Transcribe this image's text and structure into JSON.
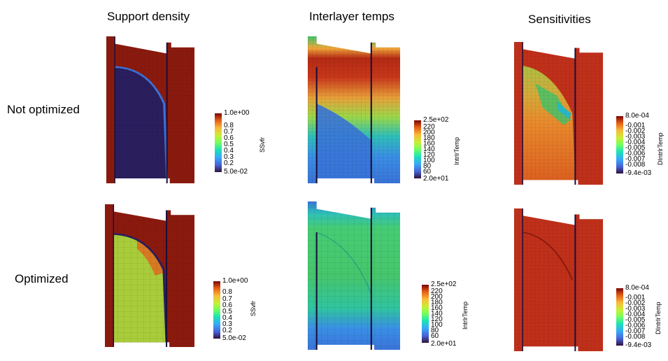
{
  "columns": [
    "Support density",
    "Interlayer temps",
    "Sensitivities"
  ],
  "rows": [
    "Not optimized",
    "Optimized"
  ],
  "colorbars": {
    "density": {
      "title": "SSvfr",
      "max_label": "1.0e+00",
      "min_label": "5.0e-02",
      "ticks": [
        "0.8",
        "0.7",
        "0.6",
        "0.5",
        "0.4",
        "0.3",
        "0.2"
      ]
    },
    "temp": {
      "title": "IntrlrTemp",
      "max_label": "2.5e+02",
      "min_label": "2.0e+01",
      "ticks": [
        "220",
        "200",
        "180",
        "160",
        "140",
        "120",
        "100",
        "80",
        "60"
      ]
    },
    "sens": {
      "title": "DIntrlrTemp",
      "max_label": "8.0e-04",
      "min_label": "-9.4e-03",
      "ticks": [
        "-0.001",
        "-0.002",
        "-0.003",
        "-0.004",
        "-0.005",
        "-0.006",
        "-0.007",
        "-0.008"
      ]
    }
  },
  "colors": {
    "dark_red": "#8b1a0e",
    "red": "#c0301a",
    "orange": "#e06a20",
    "yellow_green": "#a8cc3a",
    "green": "#3fc46a",
    "cyan": "#28b9c8",
    "blue": "#3a74d8",
    "navy": "#2a1e5e"
  }
}
